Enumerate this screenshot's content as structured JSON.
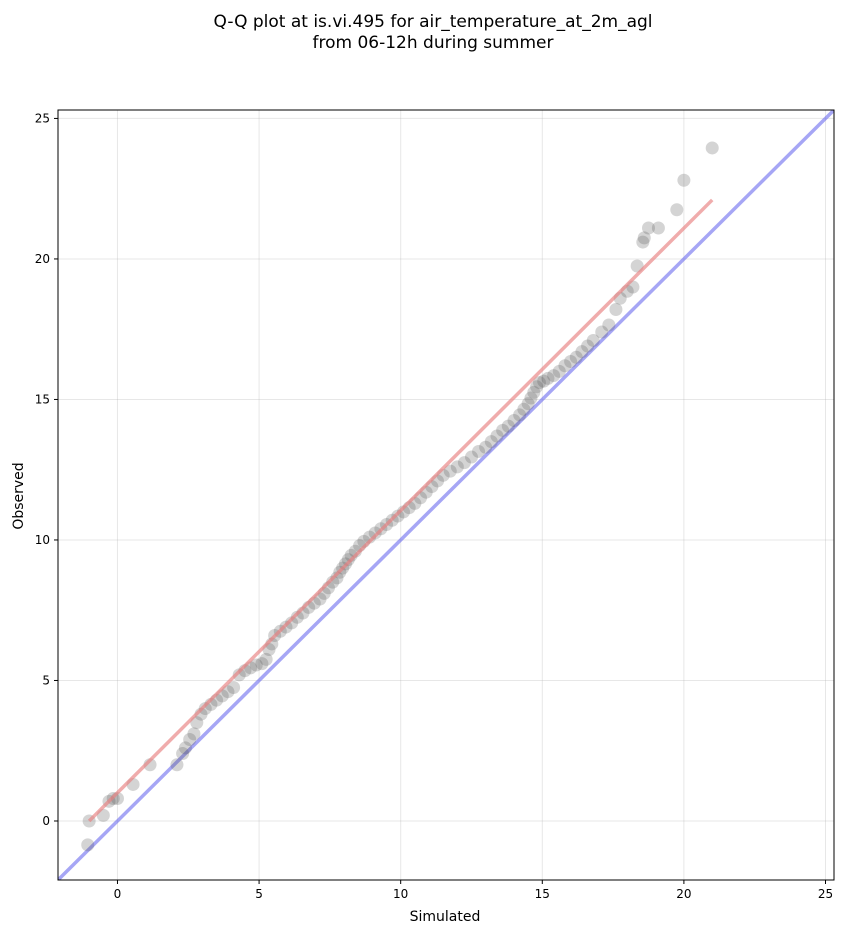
{
  "chart_data": {
    "type": "scatter",
    "title_line1": "Q-Q plot at is.vi.495 for air_temperature_at_2m_agl",
    "title_line2": "from 06-12h during summer",
    "xlabel": "Simulated",
    "ylabel": "Observed",
    "xlim": [
      -2.1,
      25.3
    ],
    "ylim": [
      -2.1,
      25.3
    ],
    "xticks": [
      0,
      5,
      10,
      15,
      20,
      25
    ],
    "yticks": [
      0,
      5,
      10,
      15,
      20,
      25
    ],
    "grid": true,
    "colors": {
      "points": "#555555",
      "identity_line": "#6a6aee",
      "fit_line": "#e88080"
    },
    "identity_line": {
      "from": [
        -2.1,
        -2.1
      ],
      "to": [
        25.3,
        25.3
      ]
    },
    "fit_line": {
      "from": [
        -1.0,
        0.0
      ],
      "to": [
        21.0,
        22.1
      ]
    },
    "points": [
      [
        -1.05,
        -0.85
      ],
      [
        -1.0,
        0.0
      ],
      [
        -0.5,
        0.2
      ],
      [
        -0.3,
        0.7
      ],
      [
        -0.15,
        0.8
      ],
      [
        0.0,
        0.8
      ],
      [
        0.55,
        1.3
      ],
      [
        1.15,
        2.0
      ],
      [
        2.1,
        2.0
      ],
      [
        2.3,
        2.4
      ],
      [
        2.4,
        2.6
      ],
      [
        2.55,
        2.9
      ],
      [
        2.7,
        3.1
      ],
      [
        2.8,
        3.5
      ],
      [
        2.95,
        3.8
      ],
      [
        3.1,
        4.0
      ],
      [
        3.3,
        4.15
      ],
      [
        3.5,
        4.3
      ],
      [
        3.7,
        4.45
      ],
      [
        3.9,
        4.6
      ],
      [
        4.1,
        4.75
      ],
      [
        4.3,
        5.2
      ],
      [
        4.5,
        5.35
      ],
      [
        4.7,
        5.45
      ],
      [
        4.9,
        5.55
      ],
      [
        5.1,
        5.6
      ],
      [
        5.25,
        5.75
      ],
      [
        5.35,
        6.1
      ],
      [
        5.45,
        6.3
      ],
      [
        5.55,
        6.6
      ],
      [
        5.75,
        6.75
      ],
      [
        5.95,
        6.9
      ],
      [
        6.15,
        7.05
      ],
      [
        6.35,
        7.25
      ],
      [
        6.55,
        7.4
      ],
      [
        6.75,
        7.6
      ],
      [
        6.95,
        7.75
      ],
      [
        7.15,
        7.9
      ],
      [
        7.3,
        8.1
      ],
      [
        7.45,
        8.3
      ],
      [
        7.6,
        8.5
      ],
      [
        7.75,
        8.65
      ],
      [
        7.85,
        8.85
      ],
      [
        7.95,
        9.0
      ],
      [
        8.05,
        9.15
      ],
      [
        8.15,
        9.3
      ],
      [
        8.25,
        9.45
      ],
      [
        8.4,
        9.6
      ],
      [
        8.55,
        9.8
      ],
      [
        8.7,
        9.95
      ],
      [
        8.9,
        10.1
      ],
      [
        9.1,
        10.25
      ],
      [
        9.3,
        10.4
      ],
      [
        9.5,
        10.55
      ],
      [
        9.7,
        10.7
      ],
      [
        9.9,
        10.85
      ],
      [
        10.1,
        11.0
      ],
      [
        10.3,
        11.15
      ],
      [
        10.5,
        11.3
      ],
      [
        10.7,
        11.5
      ],
      [
        10.9,
        11.7
      ],
      [
        11.1,
        11.9
      ],
      [
        11.3,
        12.1
      ],
      [
        11.5,
        12.3
      ],
      [
        11.75,
        12.45
      ],
      [
        12.0,
        12.6
      ],
      [
        12.25,
        12.75
      ],
      [
        12.5,
        12.95
      ],
      [
        12.75,
        13.15
      ],
      [
        13.0,
        13.3
      ],
      [
        13.2,
        13.5
      ],
      [
        13.4,
        13.7
      ],
      [
        13.6,
        13.9
      ],
      [
        13.8,
        14.05
      ],
      [
        14.0,
        14.25
      ],
      [
        14.2,
        14.45
      ],
      [
        14.35,
        14.65
      ],
      [
        14.5,
        14.85
      ],
      [
        14.6,
        15.05
      ],
      [
        14.7,
        15.25
      ],
      [
        14.8,
        15.45
      ],
      [
        14.9,
        15.6
      ],
      [
        15.05,
        15.65
      ],
      [
        15.2,
        15.75
      ],
      [
        15.4,
        15.85
      ],
      [
        15.6,
        16.0
      ],
      [
        15.8,
        16.2
      ],
      [
        16.0,
        16.35
      ],
      [
        16.2,
        16.5
      ],
      [
        16.4,
        16.7
      ],
      [
        16.6,
        16.9
      ],
      [
        16.8,
        17.1
      ],
      [
        17.1,
        17.4
      ],
      [
        17.35,
        17.65
      ],
      [
        17.6,
        18.2
      ],
      [
        17.75,
        18.6
      ],
      [
        18.0,
        18.85
      ],
      [
        18.2,
        19.0
      ],
      [
        18.35,
        19.75
      ],
      [
        18.55,
        20.6
      ],
      [
        18.6,
        20.75
      ],
      [
        18.75,
        21.1
      ],
      [
        19.1,
        21.1
      ],
      [
        19.75,
        21.75
      ],
      [
        20.0,
        22.8
      ],
      [
        21.0,
        23.95
      ]
    ]
  }
}
